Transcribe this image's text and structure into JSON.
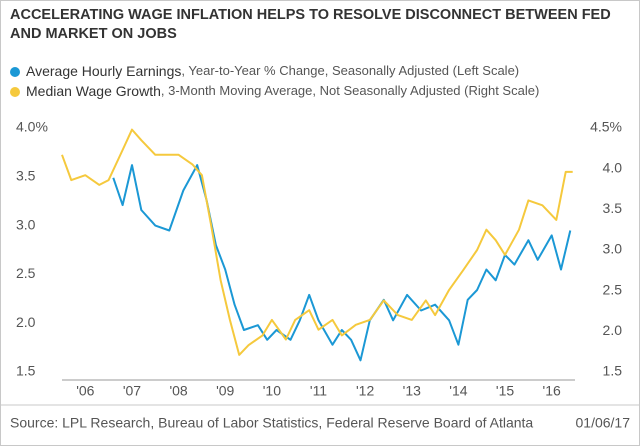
{
  "chart_data": {
    "type": "line",
    "title": "ACCELERATING WAGE INFLATION HELPS TO RESOLVE DISCONNECT BETWEEN FED AND MARKET ON JOBS",
    "source": "Source: LPL Research, Bureau of Labor Statistics, Federal Reserve Board of Atlanta",
    "date": "01/06/17",
    "xlim": [
      2006,
      2017
    ],
    "xticks": [
      {
        "value": 2006.5,
        "label": "'06"
      },
      {
        "value": 2007.5,
        "label": "'07"
      },
      {
        "value": 2008.5,
        "label": "'08"
      },
      {
        "value": 2009.5,
        "label": "'09"
      },
      {
        "value": 2010.5,
        "label": "'10"
      },
      {
        "value": 2011.5,
        "label": "'11"
      },
      {
        "value": 2012.5,
        "label": "'12"
      },
      {
        "value": 2013.5,
        "label": "'13"
      },
      {
        "value": 2014.5,
        "label": "'14"
      },
      {
        "value": 2015.5,
        "label": "'15"
      },
      {
        "value": 2016.5,
        "label": "'16"
      }
    ],
    "ylim": [
      1.5,
      4.0
    ],
    "yticks": [
      1.5,
      {
        "value": 2.0,
        "label": "2.0"
      },
      2.5,
      {
        "value": 3.0,
        "label": "3.0"
      },
      3.5,
      {
        "value": 4.0,
        "label": "4.0%"
      }
    ],
    "y2lim": [
      1.5,
      4.5
    ],
    "y2ticks": [
      1.5,
      {
        "value": 2.0,
        "label": "2.0"
      },
      2.5,
      {
        "value": 3.0,
        "label": "3.0"
      },
      3.5,
      {
        "value": 4.0,
        "label": "4.0"
      },
      {
        "value": 4.5,
        "label": "4.5%"
      }
    ],
    "series": [
      {
        "name": "Average Hourly Earnings",
        "legend_note": ", Year-to-Year % Change, Seasonally Adjusted (Left Scale)",
        "color": "#1b98d5",
        "axis": "y",
        "x": [
          2007.1,
          2007.3,
          2007.5,
          2007.7,
          2008.0,
          2008.3,
          2008.6,
          2008.9,
          2009.1,
          2009.3,
          2009.5,
          2009.7,
          2009.9,
          2010.2,
          2010.4,
          2010.6,
          2010.9,
          2011.1,
          2011.3,
          2011.5,
          2011.8,
          2012.0,
          2012.2,
          2012.4,
          2012.6,
          2012.9,
          2013.1,
          2013.4,
          2013.7,
          2014.0,
          2014.3,
          2014.5,
          2014.7,
          2014.9,
          2015.1,
          2015.3,
          2015.5,
          2015.7,
          2016.0,
          2016.2,
          2016.5,
          2016.7,
          2016.9
        ],
        "values": [
          3.49,
          3.21,
          3.62,
          3.16,
          3.0,
          2.95,
          3.36,
          3.62,
          3.26,
          2.8,
          2.55,
          2.19,
          1.93,
          1.98,
          1.83,
          1.93,
          1.83,
          2.03,
          2.29,
          2.03,
          1.78,
          1.93,
          1.83,
          1.62,
          2.03,
          2.24,
          2.03,
          2.29,
          2.13,
          2.19,
          2.03,
          1.78,
          2.24,
          2.34,
          2.55,
          2.44,
          2.7,
          2.6,
          2.85,
          2.65,
          2.9,
          2.55,
          2.95
        ]
      },
      {
        "name": "Median Wage Growth",
        "legend_note": ", 3-Month Moving Average, Not Seasonally Adjusted (Right Scale)",
        "color": "#f5c93d",
        "axis": "y2",
        "x": [
          2006.0,
          2006.2,
          2006.5,
          2006.8,
          2007.0,
          2007.3,
          2007.5,
          2007.7,
          2008.0,
          2008.5,
          2008.8,
          2009.0,
          2009.2,
          2009.4,
          2009.6,
          2009.8,
          2010.0,
          2010.3,
          2010.5,
          2010.8,
          2011.0,
          2011.3,
          2011.5,
          2011.8,
          2012.0,
          2012.3,
          2012.6,
          2012.9,
          2013.2,
          2013.5,
          2013.8,
          2014.0,
          2014.3,
          2014.6,
          2014.9,
          2015.1,
          2015.3,
          2015.5,
          2015.8,
          2016.0,
          2016.3,
          2016.6,
          2016.8,
          2016.95
        ],
        "values": [
          4.17,
          3.86,
          3.92,
          3.8,
          3.86,
          4.23,
          4.48,
          4.35,
          4.17,
          4.17,
          4.05,
          3.92,
          3.3,
          2.63,
          2.14,
          1.71,
          1.83,
          1.95,
          2.14,
          1.9,
          2.14,
          2.26,
          2.02,
          2.14,
          1.95,
          2.08,
          2.14,
          2.38,
          2.2,
          2.14,
          2.38,
          2.2,
          2.51,
          2.75,
          3.0,
          3.25,
          3.12,
          2.94,
          3.25,
          3.61,
          3.55,
          3.37,
          3.96,
          3.96
        ]
      }
    ]
  }
}
